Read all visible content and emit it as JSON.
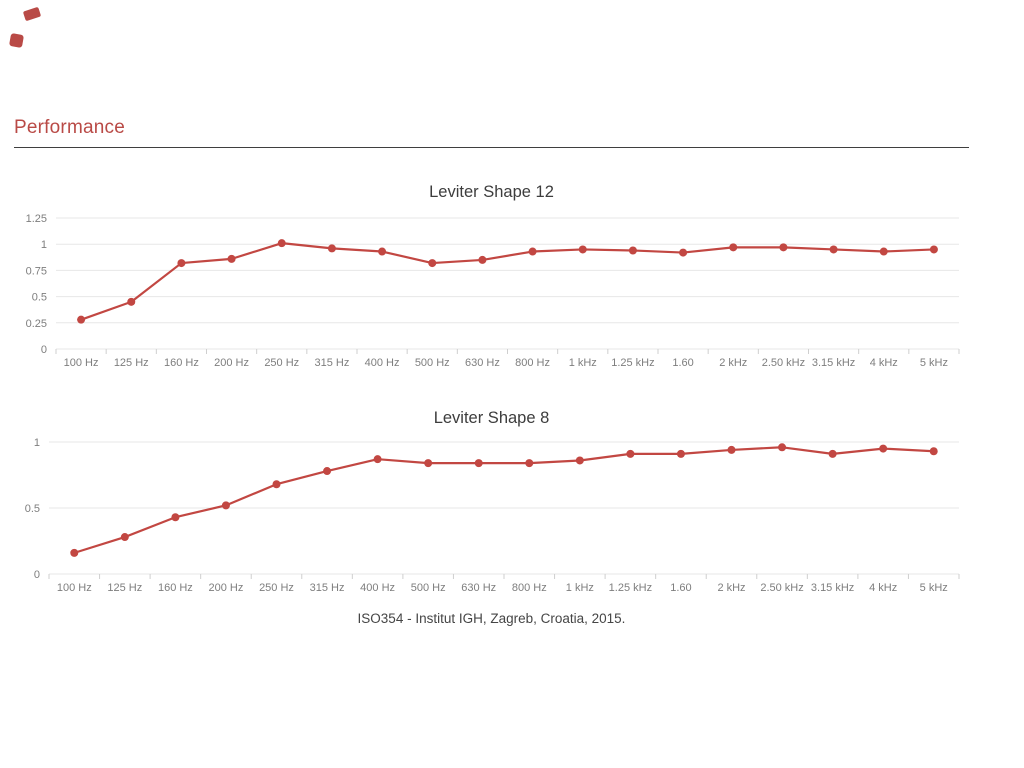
{
  "page": {
    "heading": "Performance"
  },
  "decor": {
    "top_left_marks": [
      "logo-fragment",
      "logo-fragment"
    ]
  },
  "colors": {
    "accent_red": "#b94a46",
    "series_red": "#c24742",
    "gridline": "#e7e7e7",
    "axis_tick": "#cfcfcf",
    "tick_label": "#7e7e7e",
    "chart_title": "#3d3d3d",
    "caption_text": "#454545",
    "divider": "#3f3f3f"
  },
  "caption": "ISO354 - Institut IGH, Zagreb, Croatia, 2015.",
  "chart_data": [
    {
      "type": "line",
      "title": "Leviter Shape 12",
      "categories": [
        "100 Hz",
        "125 Hz",
        "160 Hz",
        "200 Hz",
        "250 Hz",
        "315 Hz",
        "400 Hz",
        "500 Hz",
        "630 Hz",
        "800 Hz",
        "1 kHz",
        "1.25 kHz",
        "1.60",
        "2 kHz",
        "2.50 kHz",
        "3.15 kHz",
        "4 kHz",
        "5 kHz"
      ],
      "values": [
        0.28,
        0.45,
        0.82,
        0.86,
        1.01,
        0.96,
        0.93,
        0.82,
        0.85,
        0.93,
        0.95,
        0.94,
        0.92,
        0.97,
        0.97,
        0.95,
        0.93,
        0.95
      ],
      "y_ticks": [
        {
          "value": 1.25,
          "label": "1.25"
        },
        {
          "value": 1,
          "label": "1"
        },
        {
          "value": 0.75,
          "label": "0.75"
        },
        {
          "value": 0.5,
          "label": "0.5"
        },
        {
          "value": 0.25,
          "label": "0.25"
        },
        {
          "value": 0,
          "label": "0"
        }
      ],
      "ylim": [
        0,
        1.25
      ],
      "xlabel": "",
      "ylabel": "",
      "grid": "horizontal",
      "legend": "none"
    },
    {
      "type": "line",
      "title": "Leviter Shape 8",
      "categories": [
        "100 Hz",
        "125 Hz",
        "160 Hz",
        "200 Hz",
        "250 Hz",
        "315 Hz",
        "400 Hz",
        "500 Hz",
        "630 Hz",
        "800 Hz",
        "1 kHz",
        "1.25 kHz",
        "1.60",
        "2 kHz",
        "2.50 kHz",
        "3.15 kHz",
        "4 kHz",
        "5 kHz"
      ],
      "values": [
        0.16,
        0.28,
        0.43,
        0.52,
        0.68,
        0.78,
        0.87,
        0.84,
        0.84,
        0.84,
        0.86,
        0.91,
        0.91,
        0.94,
        0.96,
        0.91,
        0.95,
        0.93
      ],
      "y_ticks": [
        {
          "value": 1,
          "label": "1"
        },
        {
          "value": 0.5,
          "label": "0.5"
        },
        {
          "value": 0,
          "label": "0"
        }
      ],
      "ylim": [
        0,
        1.25
      ],
      "xlabel": "",
      "ylabel": "",
      "grid": "horizontal",
      "legend": "none"
    }
  ]
}
